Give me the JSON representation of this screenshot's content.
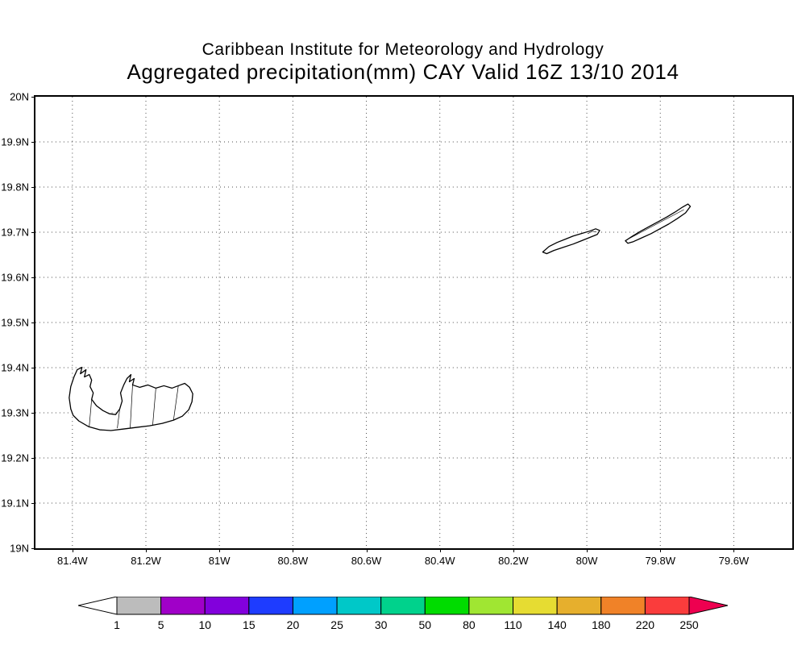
{
  "title": {
    "line1": "Caribbean Institute for Meteorology and Hydrology",
    "line2": "Aggregated precipitation(mm) CAY Valid 16Z 13/10 2014"
  },
  "map": {
    "x_ticks": [
      "81.4W",
      "81.2W",
      "81W",
      "80.8W",
      "80.6W",
      "80.4W",
      "80.2W",
      "80W",
      "79.8W",
      "79.6W"
    ],
    "y_ticks": [
      "20N",
      "19.9N",
      "19.8N",
      "19.7N",
      "19.6N",
      "19.5N",
      "19.4N",
      "19.3N",
      "19.2N",
      "19.1N",
      "19N"
    ]
  },
  "colorbar": {
    "labels": [
      "1",
      "5",
      "10",
      "15",
      "20",
      "25",
      "30",
      "50",
      "80",
      "110",
      "140",
      "180",
      "220",
      "250"
    ],
    "segments": [
      "#bcbcbc",
      "#a000c8",
      "#8200dc",
      "#1e3cff",
      "#00a0ff",
      "#00c8c8",
      "#00d28c",
      "#00dc00",
      "#a0e632",
      "#e6dc32",
      "#e6af2d",
      "#f08228",
      "#fa3c3c"
    ],
    "left_arrow_color": "#ffffff",
    "right_arrow_color": "#ee0050",
    "outline_color": "#000000"
  },
  "chart_data": {
    "type": "heatmap",
    "title": "Aggregated precipitation(mm) CAY Valid 16Z 13/10 2014",
    "x_ticks": [
      "81.4W",
      "81.2W",
      "81W",
      "80.8W",
      "80.6W",
      "80.4W",
      "80.2W",
      "80W",
      "79.8W",
      "79.6W"
    ],
    "y_ticks": [
      "20N",
      "19.9N",
      "19.8N",
      "19.7N",
      "19.6N",
      "19.5N",
      "19.4N",
      "19.3N",
      "19.2N",
      "19.1N",
      "19N"
    ],
    "colorbar_levels": [
      1,
      5,
      10,
      15,
      20,
      25,
      30,
      50,
      80,
      110,
      140,
      180,
      220,
      250
    ],
    "note": "No shaded precipitation areas are visible inside the map; only island coastlines are drawn."
  }
}
